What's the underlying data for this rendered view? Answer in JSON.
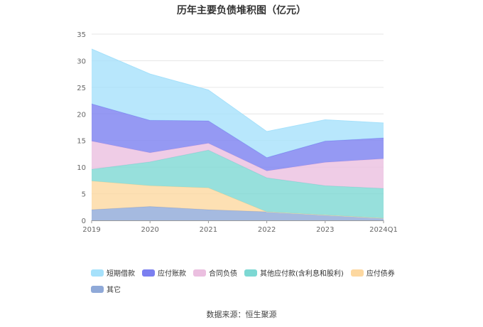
{
  "chart_data": {
    "type": "area",
    "title": "历年主要负债堆积图（亿元）",
    "categories": [
      "2019",
      "2020",
      "2021",
      "2022",
      "2023",
      "2024Q1"
    ],
    "ylim": [
      0,
      35
    ],
    "yticks": [
      0,
      5,
      10,
      15,
      20,
      25,
      30,
      35
    ],
    "grid": true,
    "stacked": true,
    "legend_position": "bottom",
    "series": [
      {
        "name": "其它",
        "values": [
          2.0,
          2.6,
          2.0,
          1.6,
          1.0,
          0.4
        ],
        "color": "#8fa9d8"
      },
      {
        "name": "应付债券",
        "values": [
          5.4,
          3.9,
          4.1,
          0.0,
          0.0,
          0.0
        ],
        "color": "#fdd8a0"
      },
      {
        "name": "其他应付款(含利息和股利)",
        "values": [
          2.2,
          4.5,
          7.1,
          6.4,
          5.5,
          5.6
        ],
        "color": "#7dd8d3"
      },
      {
        "name": "合同负债",
        "values": [
          5.3,
          1.7,
          1.3,
          1.3,
          4.4,
          5.6
        ],
        "color": "#ebbfe0"
      },
      {
        "name": "应付账款",
        "values": [
          7.0,
          6.1,
          4.2,
          2.5,
          4.0,
          3.9
        ],
        "color": "#7b7ff0"
      },
      {
        "name": "短期借款",
        "values": [
          10.3,
          8.7,
          5.8,
          4.9,
          4.0,
          2.8
        ],
        "color": "#a6e1fb"
      }
    ]
  },
  "legend_order": [
    "短期借款",
    "应付账款",
    "合同负债",
    "其他应付款(含利息和股利)",
    "应付债券",
    "其它"
  ],
  "source_text": "数据来源：恒生聚源"
}
